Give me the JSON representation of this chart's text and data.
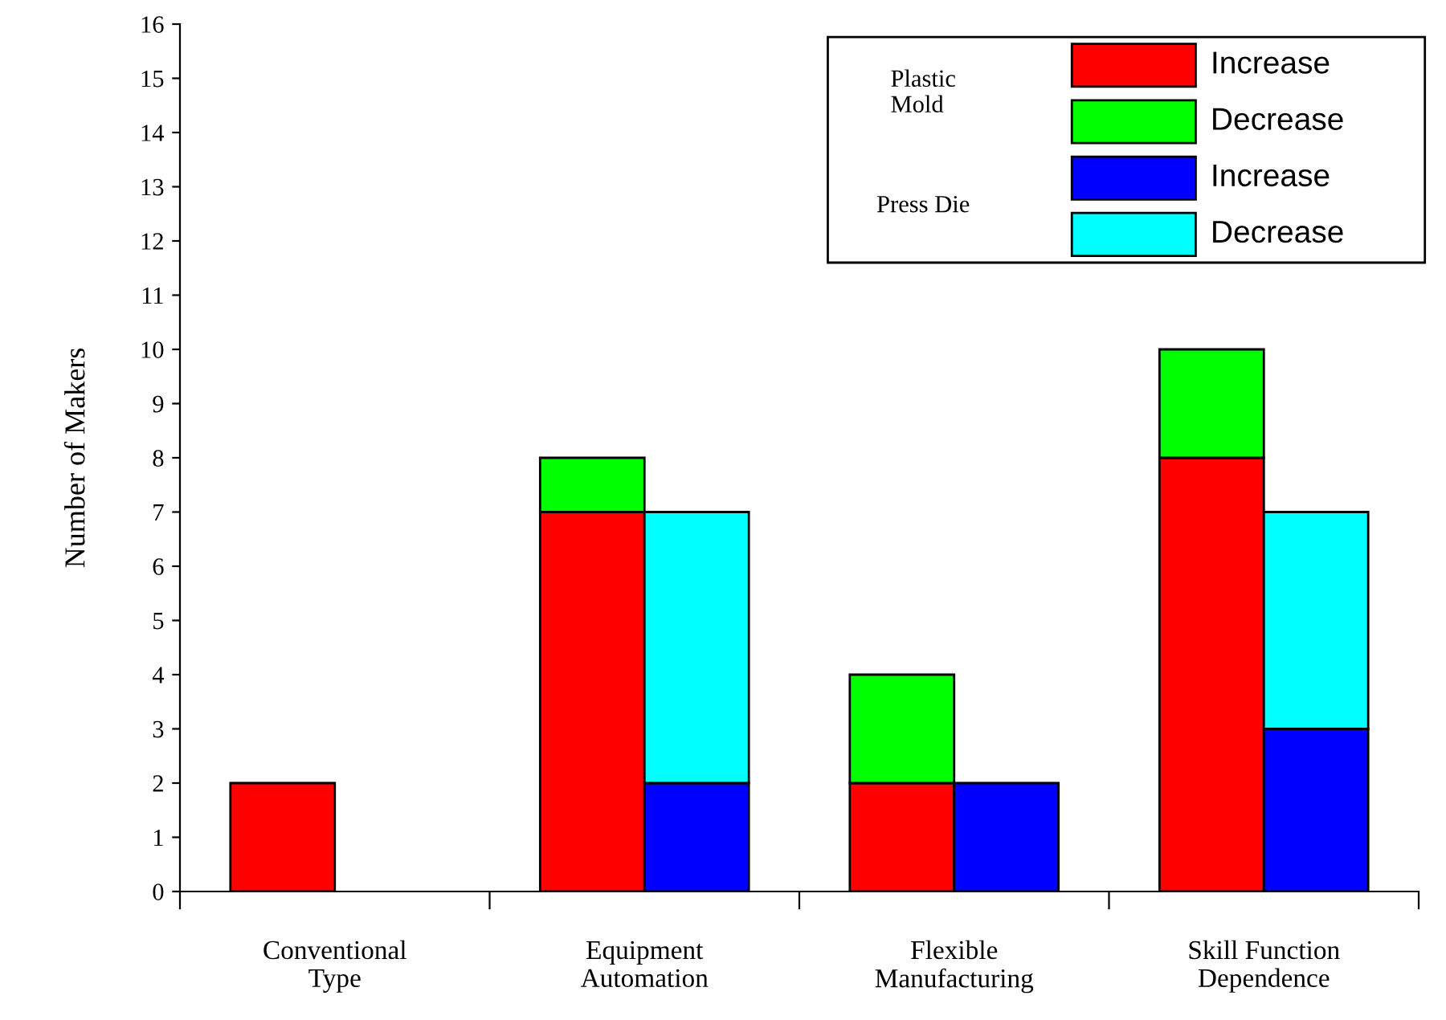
{
  "chart_data": [
    {
      "type": "bar",
      "stacked": true,
      "ylabel": "Number of Makers",
      "legend_title": "Plastic\nMold",
      "categories": [
        "Conventional\nType",
        "Equipment\nAutomation",
        "Flexible\nManufacturing",
        "Skill Function\nDependence"
      ],
      "ylim": [
        0,
        16
      ],
      "yticks": [
        0,
        1,
        2,
        3,
        4,
        5,
        6,
        7,
        8,
        9,
        10,
        11,
        12,
        13,
        14,
        15,
        16
      ],
      "legend": "top right",
      "series": [
        {
          "name": "Increase",
          "color": "#ff0000",
          "values": [
            2,
            7,
            2,
            8
          ]
        },
        {
          "name": "Decrease",
          "color": "#00ff00",
          "values": [
            0,
            1,
            2,
            2
          ]
        }
      ]
    },
    {
      "type": "bar",
      "stacked": true,
      "legend_title": "Press Die",
      "tick_labels": false,
      "categories": [
        "Conventional\nType",
        "Equipment\nAutomation",
        "Flexible\nManufacturing",
        "Skill Function\nDependence"
      ],
      "ylim": [
        0,
        16
      ],
      "legend": "top right",
      "series": [
        {
          "name": "Increase",
          "color": "#0000ff",
          "values": [
            0,
            2,
            2,
            3
          ]
        },
        {
          "name": "Decrease",
          "color": "#00ffff",
          "values": [
            0,
            5,
            0,
            4
          ]
        }
      ]
    }
  ]
}
